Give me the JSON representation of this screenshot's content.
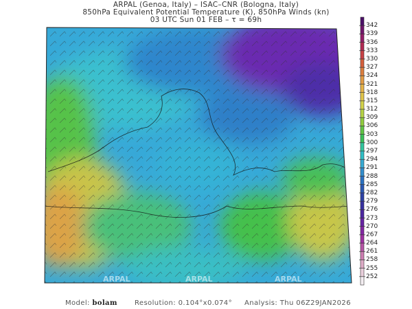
{
  "header": {
    "line1": "ARPAL (Genoa, Italy)  –  ISAC–CNR (Bologna, Italy)",
    "line2": "850hPa Equivalent Potential Temperature (K), 850hPa Winds (kn)",
    "line3": "03 UTC Sun 01 FEB  –  τ = 69h"
  },
  "colorbar": {
    "labels": [
      "342",
      "339",
      "336",
      "333",
      "330",
      "327",
      "324",
      "321",
      "318",
      "315",
      "312",
      "309",
      "306",
      "303",
      "300",
      "297",
      "294",
      "291",
      "288",
      "285",
      "282",
      "279",
      "276",
      "273",
      "270",
      "267",
      "264",
      "261",
      "258",
      "255",
      "252"
    ],
    "stops": [
      "#4b1068",
      "#8a1a6e",
      "#c0304a",
      "#d8653a",
      "#e39a45",
      "#e6c04a",
      "#cfd64a",
      "#8fcc3e",
      "#3cbf4a",
      "#2cc9c0",
      "#3aa6d6",
      "#2a73c4",
      "#2a47a8",
      "#3b2a9e",
      "#6a22a6",
      "#9a2aa0",
      "#c46aa8",
      "#e2b8cc",
      "#f4eef2"
    ]
  },
  "watermark": "ARPAL",
  "footer": {
    "model_label": "Model:",
    "model_value": "bolam",
    "resolution": "Resolution: 0.104°x0.074°",
    "analysis": "Analysis: Thu 06Z29JAN2026"
  }
}
